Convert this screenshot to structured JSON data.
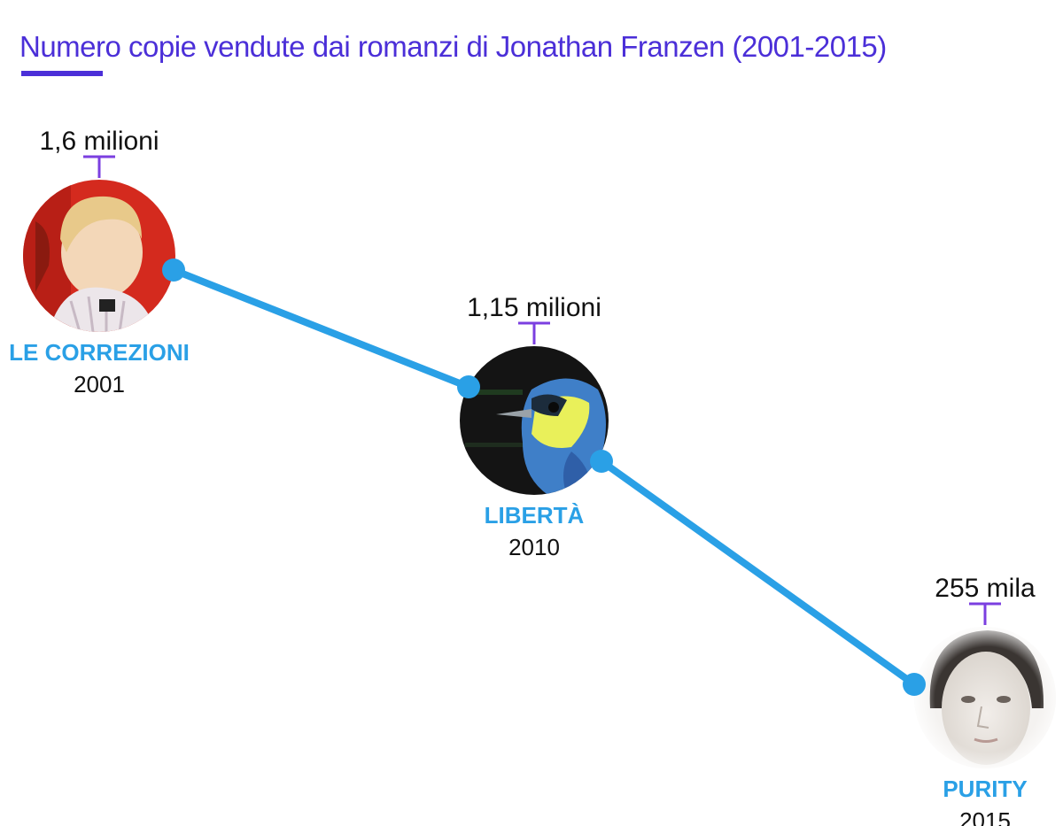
{
  "title": "Numero copie vendute dai romanzi di Jonathan Franzen (2001-2015)",
  "colors": {
    "title": "#4b2fd8",
    "line": "#2aa0e6",
    "marker": "#7b3fe0",
    "name": "#2aa0e6"
  },
  "chart_data": {
    "type": "line",
    "title": "Numero copie vendute dai romanzi di Jonathan Franzen (2001-2015)",
    "x": [
      2001,
      2010,
      2015
    ],
    "categories": [
      "LE CORREZIONI",
      "LIBERTÀ",
      "PURITY"
    ],
    "series": [
      {
        "values": [
          1600000,
          1150000,
          255000
        ]
      }
    ],
    "points": [
      {
        "name": "LE CORREZIONI",
        "year": "2001",
        "label": "1,6 milioni",
        "value": 1600000,
        "cover": "child-cover-image"
      },
      {
        "name": "LIBERTÀ",
        "year": "2010",
        "label": "1,15 milioni",
        "value": 1150000,
        "cover": "bird-cover-image"
      },
      {
        "name": "PURITY",
        "year": "2015",
        "label": "255 mila",
        "value": 255000,
        "cover": "woman-cover-image"
      }
    ],
    "grid": false,
    "legend": "none"
  }
}
